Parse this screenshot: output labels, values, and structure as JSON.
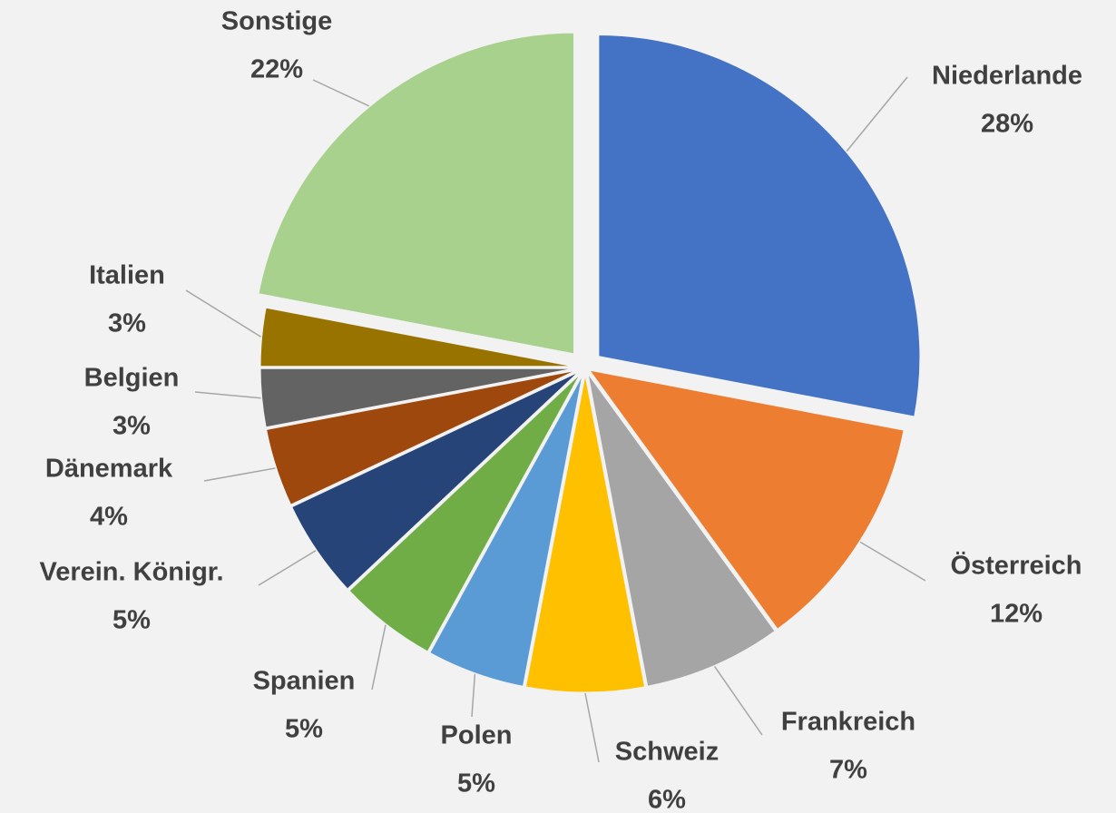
{
  "chart_data": {
    "type": "pie",
    "categories": [
      "Niederlande",
      "Österreich",
      "Frankreich",
      "Schweiz",
      "Polen",
      "Spanien",
      "Verein. Königr.",
      "Dänemark",
      "Belgien",
      "Italien",
      "Sonstige"
    ],
    "values": [
      28,
      12,
      7,
      6,
      5,
      5,
      5,
      4,
      3,
      3,
      22
    ],
    "value_labels": [
      "28%",
      "12%",
      "7%",
      "6%",
      "5%",
      "5%",
      "5%",
      "4%",
      "3%",
      "3%",
      "22%"
    ],
    "colors": [
      "#4472c4",
      "#ed7d31",
      "#a5a5a5",
      "#ffc000",
      "#5b9bd5",
      "#70ad47",
      "#264478",
      "#9e480e",
      "#636363",
      "#997300",
      "#a9d18e"
    ]
  }
}
